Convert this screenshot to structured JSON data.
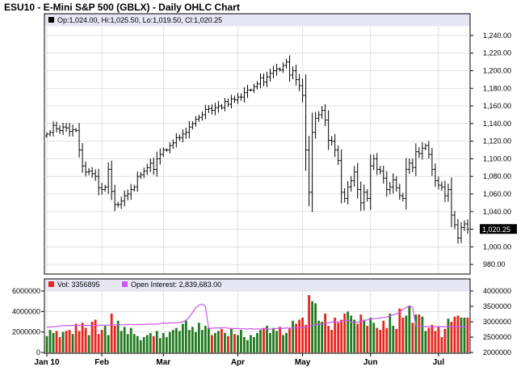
{
  "title": "ESU10 - E-Mini S&P 500 (GBLX) - Daily OHLC Chart",
  "colors": {
    "band": "#e6e6f5",
    "up_volume": "#1f7a1f",
    "down_volume": "#e8241d",
    "open_interest": "#cc55ee",
    "grid": "#d9d9d9"
  },
  "chart_data": [
    {
      "type": "ohlc",
      "legend": "Op:1,024.00, Hi:1,025.50, Lo:1,019.50, Cl:1,020.25",
      "last_close_label": "1,020.25",
      "y_ticks": [
        "980.00",
        "1,000.00",
        "1,020.00",
        "1,040.00",
        "1,060.00",
        "1,080.00",
        "1,100.00",
        "1,120.00",
        "1,140.00",
        "1,160.00",
        "1,180.00",
        "1,200.00",
        "1,220.00",
        "1,240.00"
      ],
      "ylim": [
        970,
        1250
      ],
      "x_ticks": [
        "Jan 10",
        "Feb",
        "Mar",
        "Apr",
        "May",
        "Jun",
        "Jul"
      ],
      "x_tick_index": [
        0,
        17,
        36,
        59,
        79,
        100,
        121
      ],
      "closes": [
        1128,
        1130,
        1138,
        1134,
        1132,
        1136,
        1135,
        1131,
        1133,
        1132,
        1110,
        1092,
        1085,
        1086,
        1083,
        1080,
        1067,
        1065,
        1068,
        1088,
        1063,
        1048,
        1048,
        1052,
        1058,
        1060,
        1065,
        1068,
        1080,
        1082,
        1086,
        1090,
        1095,
        1088,
        1100,
        1105,
        1110,
        1110,
        1115,
        1118,
        1124,
        1124,
        1128,
        1130,
        1136,
        1140,
        1145,
        1147,
        1150,
        1156,
        1157,
        1155,
        1158,
        1160,
        1158,
        1165,
        1162,
        1168,
        1167,
        1170,
        1170,
        1175,
        1178,
        1178,
        1182,
        1185,
        1192,
        1187,
        1193,
        1197,
        1200,
        1202,
        1201,
        1206,
        1210,
        1195,
        1200,
        1190,
        1183,
        1172,
        1110,
        1062,
        1130,
        1146,
        1150,
        1155,
        1144,
        1121,
        1120,
        1110,
        1098,
        1062,
        1055,
        1068,
        1075,
        1085,
        1065,
        1050,
        1062,
        1055,
        1092,
        1100,
        1088,
        1086,
        1078,
        1065,
        1068,
        1076,
        1067,
        1058,
        1055,
        1088,
        1095,
        1090,
        1108,
        1106,
        1112,
        1115,
        1105,
        1088,
        1075,
        1070,
        1068,
        1058,
        1065,
        1036,
        1025,
        1010,
        1022,
        1026,
        1020
      ]
    },
    {
      "type": "bar+line",
      "legend": "Vol: 3356895",
      "legend2": "Open Interest: 2,839,683.00",
      "y_ticks_left": [
        "0",
        "2000000",
        "4000000",
        "6000000"
      ],
      "ylim_left": [
        0,
        6000000
      ],
      "y_ticks_right": [
        "2000000",
        "2500000",
        "3000000",
        "3500000",
        "4000000"
      ],
      "ylim_right": [
        2000000,
        4000000
      ],
      "volume": [
        1600000,
        2200000,
        1900000,
        2100000,
        1500000,
        2000000,
        2100000,
        2200000,
        1800000,
        2800000,
        2100000,
        2900000,
        2400000,
        1700000,
        3000000,
        3200000,
        1800000,
        2200000,
        2600000,
        1700000,
        3800000,
        2600000,
        3100000,
        2100000,
        2500000,
        1800000,
        2400000,
        1800000,
        1600000,
        1200000,
        1500000,
        1700000,
        1900000,
        1600000,
        2100000,
        1400000,
        1900000,
        1500000,
        2000000,
        2200000,
        2400000,
        2100000,
        2800000,
        3100000,
        2200000,
        2500000,
        2000000,
        2900000,
        2200000,
        2600000,
        2400000,
        1700000,
        1900000,
        2100000,
        2300000,
        1900000,
        1600000,
        2300000,
        1800000,
        1700000,
        2200000,
        1500000,
        1200000,
        1700000,
        1500000,
        1900000,
        2200000,
        2400000,
        2600000,
        1900000,
        2400000,
        2100000,
        2500000,
        1700000,
        1900000,
        2400000,
        3100000,
        2800000,
        3200000,
        3400000,
        2700000,
        5600000,
        5000000,
        4800000,
        3100000,
        3000000,
        3800000,
        2600000,
        2200000,
        3400000,
        2900000,
        3200000,
        3800000,
        4000000,
        3600000,
        3200000,
        2800000,
        3700000,
        3200000,
        2600000,
        3400000,
        2900000,
        2400000,
        2200000,
        3100000,
        2400000,
        3800000,
        2600000,
        2300000,
        4300000,
        3400000,
        3600000,
        4500000,
        2900000,
        3700000,
        3700000,
        3500000,
        2100000,
        2400000,
        2700000,
        2100000,
        2500000,
        1500000,
        2300000,
        3300000,
        3000000,
        3500000,
        3600000,
        3400000,
        3400000,
        3400000
      ],
      "open_interest": [
        2820000,
        2830000,
        2840000,
        2850000,
        2860000,
        2870000,
        2870000,
        2880000,
        2880000,
        2880000,
        2890000,
        2890000,
        2880000,
        2880000,
        2890000,
        2880000,
        2880000,
        2890000,
        2890000,
        2890000,
        2900000,
        2900000,
        2900000,
        2900000,
        2900000,
        2910000,
        2910000,
        2900000,
        2910000,
        2910000,
        2910000,
        2920000,
        2920000,
        2920000,
        2920000,
        2940000,
        2960000,
        2950000,
        2960000,
        2960000,
        2970000,
        2980000,
        3000000,
        3050000,
        3150000,
        3300000,
        3460000,
        3540000,
        3580000,
        3500000,
        2780000,
        2790000,
        2800000,
        2800000,
        2800000,
        2810000,
        2790000,
        2780000,
        2780000,
        2780000,
        2770000,
        2770000,
        2760000,
        2780000,
        2760000,
        2770000,
        2760000,
        2780000,
        2770000,
        2760000,
        2770000,
        2780000,
        2790000,
        2780000,
        2800000,
        2790000,
        2800000,
        2810000,
        2800000,
        2830000,
        2840000,
        2850000,
        2880000,
        2900000,
        2920000,
        2930000,
        2950000,
        2960000,
        2990000,
        3000000,
        2990000,
        3010000,
        3040000,
        3050000,
        3000000,
        2960000,
        2990000,
        3010000,
        3040000,
        3060000,
        3090000,
        3100000,
        3110000,
        3120000,
        3140000,
        3150000,
        3190000,
        3220000,
        3260000,
        3310000,
        3400000,
        3460000,
        3520000,
        3470000,
        2870000,
        2860000,
        2850000,
        2840000,
        2840000,
        2840000,
        2840000,
        2840000,
        2840000,
        2840000,
        2840000,
        2840000,
        2840000,
        2840000,
        2840000,
        2840000,
        2840000
      ]
    }
  ]
}
